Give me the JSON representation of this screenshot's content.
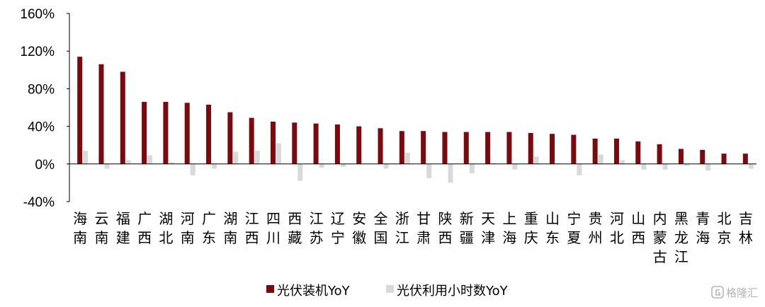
{
  "chart_data": {
    "type": "bar",
    "categories": [
      "海南",
      "云南",
      "福建",
      "广西",
      "湖北",
      "河南",
      "广东",
      "湖南",
      "江西",
      "四川",
      "西藏",
      "江苏",
      "辽宁",
      "安徽",
      "全国",
      "浙江",
      "甘肃",
      "陕西",
      "新疆",
      "天津",
      "上海",
      "重庆",
      "山东",
      "宁夏",
      "贵州",
      "河北",
      "山西",
      "内蒙古",
      "黑龙江",
      "青海",
      "北京",
      "吉林"
    ],
    "series": [
      {
        "name": "光伏装机YoY",
        "color": "#7b0a0f",
        "values": [
          114,
          106,
          98,
          66,
          66,
          65,
          63,
          55,
          49,
          45,
          44,
          43,
          42,
          40,
          38,
          35,
          35,
          34,
          34,
          34,
          34,
          33,
          32,
          31,
          27,
          27,
          24,
          21,
          16,
          15,
          11,
          11
        ]
      },
      {
        "name": "光伏利用小时数YoY",
        "color": "#d9d9d9",
        "values": [
          14,
          -5,
          4,
          9,
          2,
          -12,
          -5,
          13,
          14,
          22,
          -18,
          -4,
          -3,
          0,
          -5,
          12,
          -15,
          -20,
          -10,
          1,
          -6,
          8,
          1,
          -12,
          10,
          4,
          -6,
          -6,
          -2,
          -7,
          0,
          -5
        ]
      }
    ],
    "yticks": [
      "160%",
      "120%",
      "80%",
      "40%",
      "0%",
      "-40%"
    ],
    "ylim": [
      -40,
      160
    ],
    "legend_position": "bottom-center"
  },
  "watermark": {
    "text": "格隆汇",
    "icon": "g-logo-icon"
  }
}
